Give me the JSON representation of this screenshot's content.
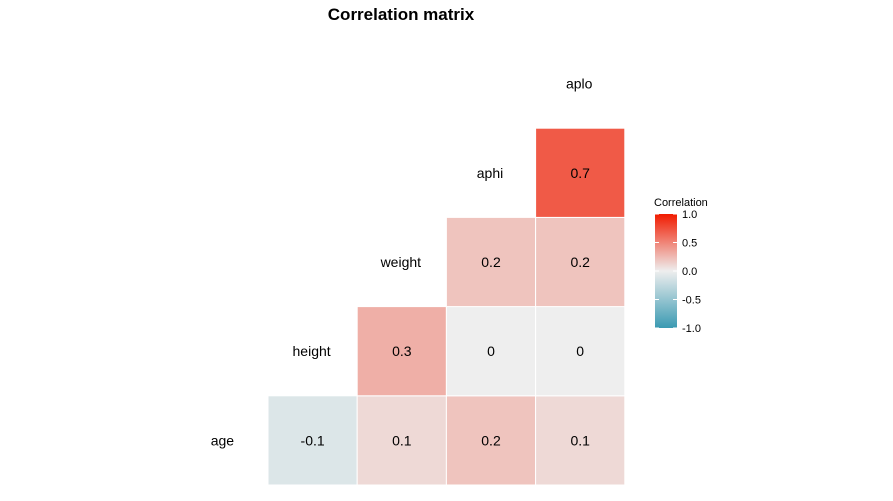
{
  "chart_data": {
    "type": "heatmap",
    "title": "Correlation matrix",
    "variables": [
      "age",
      "height",
      "weight",
      "aphi",
      "aplo"
    ],
    "cells": [
      {
        "row": "age",
        "col": "height",
        "value": -0.1,
        "label": "-0.1"
      },
      {
        "row": "age",
        "col": "weight",
        "value": 0.1,
        "label": "0.1"
      },
      {
        "row": "age",
        "col": "aphi",
        "value": 0.2,
        "label": "0.2"
      },
      {
        "row": "age",
        "col": "aplo",
        "value": 0.1,
        "label": "0.1"
      },
      {
        "row": "height",
        "col": "weight",
        "value": 0.3,
        "label": "0.3"
      },
      {
        "row": "height",
        "col": "aphi",
        "value": 0.0,
        "label": "0"
      },
      {
        "row": "height",
        "col": "aplo",
        "value": 0.0,
        "label": "0"
      },
      {
        "row": "weight",
        "col": "aphi",
        "value": 0.2,
        "label": "0.2"
      },
      {
        "row": "weight",
        "col": "aplo",
        "value": 0.2,
        "label": "0.2"
      },
      {
        "row": "aphi",
        "col": "aplo",
        "value": 0.7,
        "label": "0.7"
      }
    ],
    "legend": {
      "title": "Correlation",
      "ticks": [
        "1.0",
        "0.5",
        "0.0",
        "-0.5",
        "-1.0"
      ],
      "range": [
        -1,
        1
      ],
      "placement": "right"
    },
    "colors": {
      "low": "#3A9AB2",
      "mid": "#EEEEEE",
      "high": "#F11B00"
    },
    "grid": false
  }
}
